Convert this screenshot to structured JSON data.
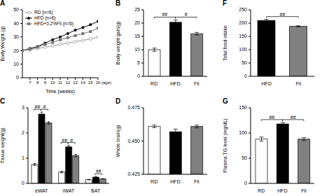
{
  "chart_data": [
    {
      "type": "line",
      "title": "A",
      "xlabel": "Time (weeks)",
      "ylabel": "Body Weight (g)",
      "x": [
        6,
        7,
        8,
        9,
        10,
        11,
        12,
        13,
        14,
        15,
        16
      ],
      "xlim": [
        6,
        16
      ],
      "xticks": [
        7,
        8,
        9,
        10,
        11,
        12,
        13,
        14,
        15,
        16
      ],
      "ylim": [
        0,
        50
      ],
      "yticks": [
        0,
        10,
        20,
        30,
        40,
        50
      ],
      "legend": "upper left",
      "annotations": [
        {
          "text": "(age)"
        }
      ],
      "series": [
        {
          "name": "RD (n=6)",
          "color": "#999999",
          "marker": "open_circle",
          "values": [
            20,
            20.5,
            21.5,
            22.5,
            23.5,
            24.5,
            25.5,
            26.5,
            27.5,
            28.5,
            30
          ]
        },
        {
          "name": "HFD (n=6)",
          "color": "#000000",
          "marker": "circle",
          "values": [
            20,
            21.5,
            23,
            25.5,
            28,
            30,
            32.5,
            35,
            37,
            39,
            41.5
          ]
        },
        {
          "name": "HFD+0.2%Fil (n=6)",
          "color": "#777777",
          "marker": "square",
          "values": [
            20,
            21,
            22.5,
            24.5,
            26,
            28,
            29.5,
            31,
            32.5,
            34,
            36.5
          ]
        }
      ]
    },
    {
      "type": "bar",
      "title": "B",
      "ylabel": "Body weight gain(g)",
      "categories": [
        "RD",
        "HFD",
        "Fil"
      ],
      "values": [
        10,
        20.3,
        16
      ],
      "errors": [
        0.6,
        0.9,
        0.5
      ],
      "colors": [
        "#ffffff",
        "#000000",
        "#808080"
      ],
      "ylim": [
        0,
        25
      ],
      "yticks": [
        0,
        5,
        10,
        15,
        20,
        25
      ],
      "annotations": [
        {
          "text": "##",
          "between": [
            "RD",
            "HFD"
          ]
        },
        {
          "text": "#",
          "between": [
            "HFD",
            "Fil"
          ]
        }
      ]
    },
    {
      "type": "bar",
      "title": "F",
      "ylabel": "Total food intake",
      "categories": [
        "HFD",
        "Fil"
      ],
      "values": [
        210,
        188
      ],
      "errors": [
        4,
        2
      ],
      "colors": [
        "#000000",
        "#808080"
      ],
      "ylim": [
        0,
        250
      ],
      "yticks": [
        0,
        50,
        100,
        150,
        200,
        250
      ],
      "annotations": [
        {
          "text": "##",
          "between": [
            "HFD",
            "Fil"
          ]
        }
      ]
    },
    {
      "type": "bar",
      "title": "C",
      "ylabel": "Tissue weight(g)",
      "categories": [
        "eWAT",
        "iWAT",
        "BAT"
      ],
      "ylim": [
        0,
        3
      ],
      "yticks": [
        0,
        1,
        2,
        3
      ],
      "series": [
        {
          "name": "RD",
          "color": "#ffffff",
          "values": [
            0.75,
            0.45,
            0.15
          ],
          "errors": [
            0.04,
            0.03,
            0.01
          ]
        },
        {
          "name": "HFD",
          "color": "#000000",
          "values": [
            2.75,
            1.45,
            0.25
          ],
          "errors": [
            0.08,
            0.06,
            0.02
          ]
        },
        {
          "name": "Fil",
          "color": "#808080",
          "values": [
            2.4,
            1.1,
            0.18
          ],
          "errors": [
            0.05,
            0.05,
            0.01
          ]
        }
      ],
      "annotations": [
        {
          "text": "##",
          "category": "eWAT",
          "between": [
            "RD",
            "HFD"
          ]
        },
        {
          "text": "#",
          "category": "eWAT",
          "between": [
            "HFD",
            "Fil"
          ]
        },
        {
          "text": "##",
          "category": "iWAT",
          "between": [
            "RD",
            "HFD"
          ]
        },
        {
          "text": "#",
          "category": "iWAT",
          "between": [
            "HFD",
            "Fil"
          ]
        },
        {
          "text": "##",
          "category": "BAT",
          "between": [
            "HFD",
            "Fil"
          ]
        }
      ]
    },
    {
      "type": "bar",
      "title": "D",
      "ylabel": "Whole brain(g)",
      "categories": [
        "RD",
        "HFD",
        "Fil"
      ],
      "values": [
        0.461,
        0.457,
        0.461
      ],
      "errors": [
        0.001,
        0.002,
        0.001
      ],
      "colors": [
        "#ffffff",
        "#000000",
        "#808080"
      ],
      "ylim": [
        0.425,
        0.475
      ],
      "yticks": [
        0.425,
        {
          "value": 0.45,
          "label": "0.450"
        },
        0.475
      ],
      "annotations": []
    },
    {
      "type": "bar",
      "title": "G",
      "ylabel": "Plasma TG level (mg/dL)",
      "categories": [
        "RD",
        "HFD",
        "Fil"
      ],
      "values": [
        88,
        118,
        88
      ],
      "errors": [
        4,
        3,
        3
      ],
      "colors": [
        "#ffffff",
        "#000000",
        "#808080"
      ],
      "ylim": [
        0,
        150
      ],
      "yticks": [
        0,
        50,
        100,
        150
      ],
      "annotations": [
        {
          "text": "##",
          "between": [
            "RD",
            "HFD"
          ]
        },
        {
          "text": "##",
          "between": [
            "HFD",
            "Fil"
          ]
        }
      ]
    }
  ]
}
